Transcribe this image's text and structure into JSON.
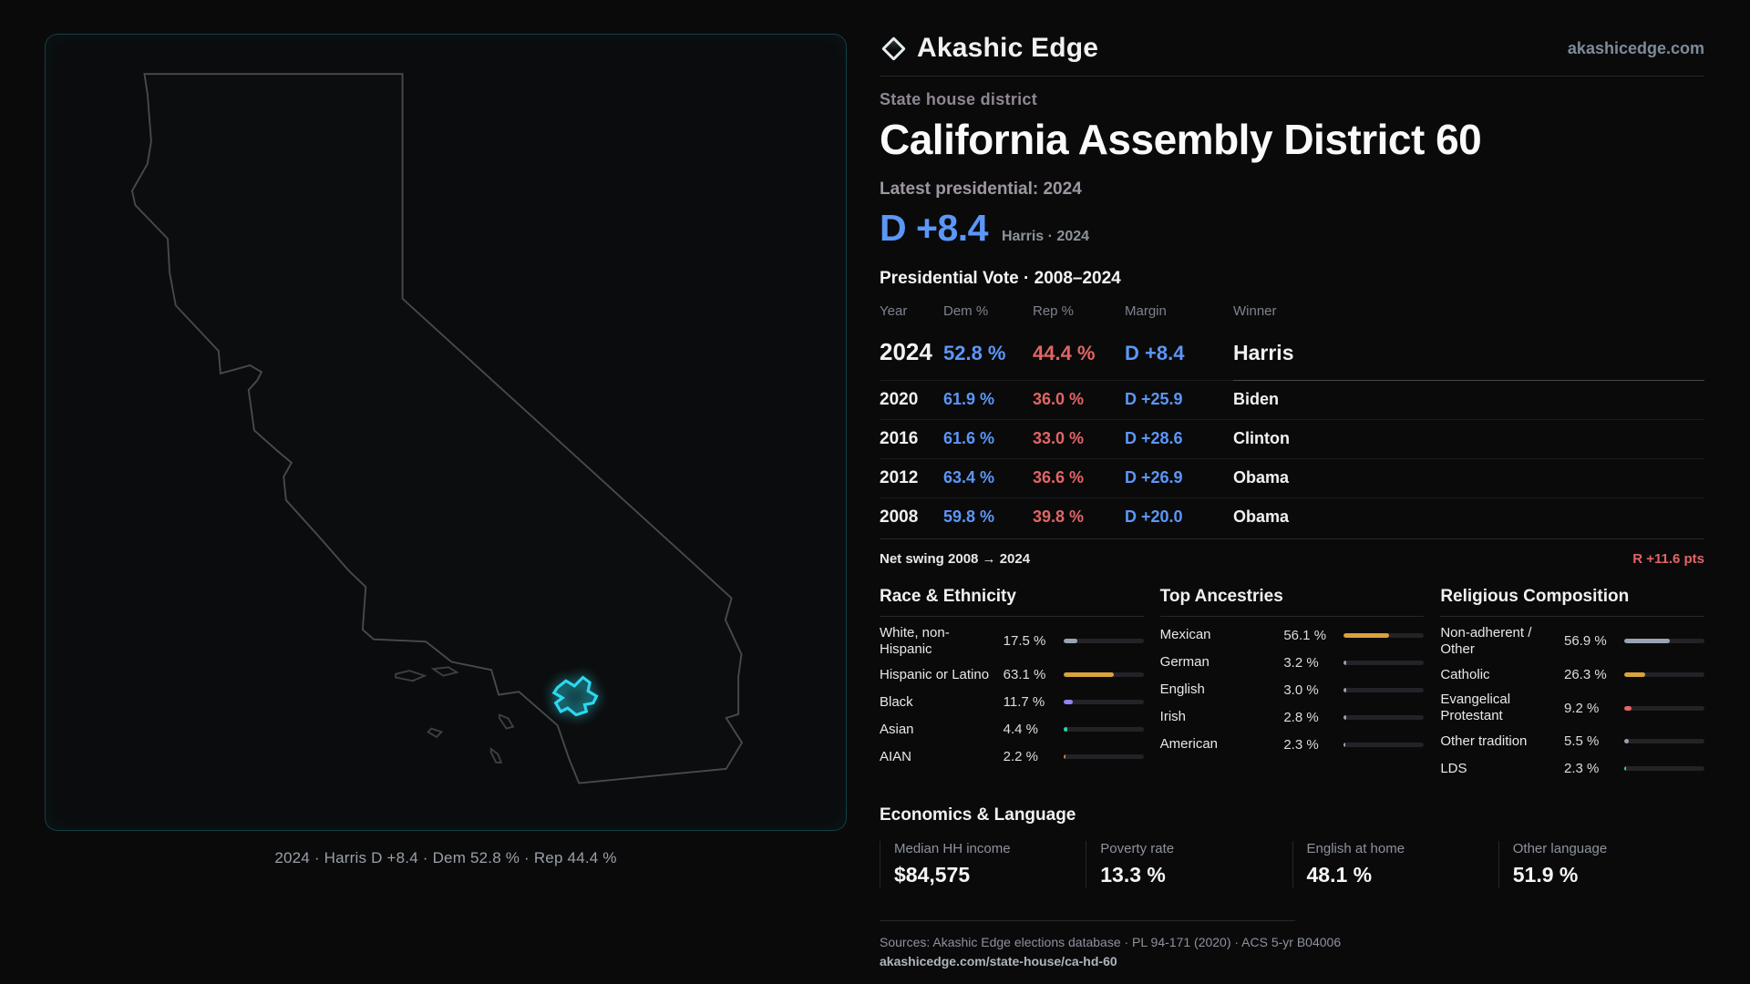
{
  "colors": {
    "dem": "#5b97f8",
    "rep": "#e26565",
    "cyan": "#2bd9ee"
  },
  "brand": {
    "name": "Akashic Edge",
    "site": "akashicedge.com"
  },
  "header": {
    "kicker": "State house district",
    "title": "California Assembly District 60",
    "latest_label": "Latest presidential: 2024",
    "headline_margin": "D +8.4",
    "headline_note": "Harris · 2024"
  },
  "map": {
    "caption": "2024 · Harris D +8.4 · Dem 52.8 % · Rep 44.4 %"
  },
  "vote_table": {
    "title": "Presidential Vote · 2008–2024",
    "columns": [
      "Year",
      "Dem %",
      "Rep %",
      "Margin",
      "Winner"
    ],
    "rows": [
      {
        "year": "2024",
        "dem": "52.8 %",
        "rep": "44.4 %",
        "margin": "D +8.4",
        "winner": "Harris"
      },
      {
        "year": "2020",
        "dem": "61.9 %",
        "rep": "36.0 %",
        "margin": "D +25.9",
        "winner": "Biden"
      },
      {
        "year": "2016",
        "dem": "61.6 %",
        "rep": "33.0 %",
        "margin": "D +28.6",
        "winner": "Clinton"
      },
      {
        "year": "2012",
        "dem": "63.4 %",
        "rep": "36.6 %",
        "margin": "D +26.9",
        "winner": "Obama"
      },
      {
        "year": "2008",
        "dem": "59.8 %",
        "rep": "39.8 %",
        "margin": "D +20.0",
        "winner": "Obama"
      }
    ],
    "net_swing_label": "Net swing 2008 → 2024",
    "net_swing_value": "R +11.6 pts"
  },
  "demographics": [
    {
      "title": "Race & Ethnicity",
      "rows": [
        {
          "label": "White, non-Hispanic",
          "value": "17.5 %",
          "pct": 17.5,
          "color": "#9aa3b4"
        },
        {
          "label": "Hispanic or Latino",
          "value": "63.1 %",
          "pct": 63.1,
          "color": "#d9a23c"
        },
        {
          "label": "Black",
          "value": "11.7 %",
          "pct": 11.7,
          "color": "#8f86f2"
        },
        {
          "label": "Asian",
          "value": "4.4 %",
          "pct": 4.4,
          "color": "#2fd1b2"
        },
        {
          "label": "AIAN",
          "value": "2.2 %",
          "pct": 2.2,
          "color": "#d97b4e"
        }
      ]
    },
    {
      "title": "Top Ancestries",
      "rows": [
        {
          "label": "Mexican",
          "value": "56.1 %",
          "pct": 56.1,
          "color": "#d9a23c"
        },
        {
          "label": "German",
          "value": "3.2 %",
          "pct": 3.2,
          "color": "#9aa3b4"
        },
        {
          "label": "English",
          "value": "3.0 %",
          "pct": 3.0,
          "color": "#9aa3b4"
        },
        {
          "label": "Irish",
          "value": "2.8 %",
          "pct": 2.8,
          "color": "#9aa3b4"
        },
        {
          "label": "American",
          "value": "2.3 %",
          "pct": 2.3,
          "color": "#9aa3b4"
        }
      ]
    },
    {
      "title": "Religious Composition",
      "rows": [
        {
          "label": "Non-adherent / Other",
          "value": "56.9 %",
          "pct": 56.9,
          "color": "#9aa3b4"
        },
        {
          "label": "Catholic",
          "value": "26.3 %",
          "pct": 26.3,
          "color": "#d9a23c"
        },
        {
          "label": "Evangelical Protestant",
          "value": "9.2 %",
          "pct": 9.2,
          "color": "#e26565"
        },
        {
          "label": "Other tradition",
          "value": "5.5 %",
          "pct": 5.5,
          "color": "#9aa3b4"
        },
        {
          "label": "LDS",
          "value": "2.3 %",
          "pct": 2.3,
          "color": "#2fd1b2"
        }
      ]
    }
  ],
  "economics": {
    "title": "Economics & Language",
    "stats": [
      {
        "label": "Median HH income",
        "value": "$84,575"
      },
      {
        "label": "Poverty rate",
        "value": "13.3 %"
      },
      {
        "label": "English at home",
        "value": "48.1 %"
      },
      {
        "label": "Other language",
        "value": "51.9 %"
      }
    ]
  },
  "footer": {
    "sources": "Sources: Akashic Edge elections database · PL 94-171 (2020) · ACS 5-yr B04006",
    "permalink": "akashicedge.com/state-house/ca-hd-60"
  }
}
